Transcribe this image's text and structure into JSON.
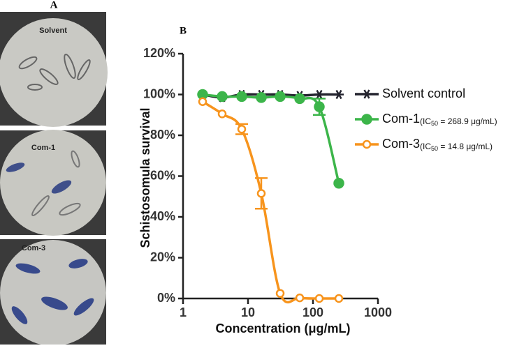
{
  "panel_a": {
    "label": "A",
    "images": [
      {
        "label": "Solvent"
      },
      {
        "label": "Com-1"
      },
      {
        "label": "Com-3"
      }
    ]
  },
  "chart_data": {
    "type": "line",
    "panel_label": "B",
    "x_label": "Concentration (μg/mL)",
    "y_label": "Schistosomula survival",
    "x": [
      2,
      4,
      8,
      16,
      31.25,
      62.5,
      125,
      250
    ],
    "xlim": [
      1,
      1000
    ],
    "xticks": [
      1,
      10,
      100,
      1000
    ],
    "x_log": true,
    "ylim": [
      0,
      120
    ],
    "yticks": [
      {
        "value": 0,
        "label": "0%"
      },
      {
        "value": 20,
        "label": "20%"
      },
      {
        "value": 40,
        "label": "40%"
      },
      {
        "value": 60,
        "label": "60%"
      },
      {
        "value": 80,
        "label": "80%"
      },
      {
        "value": 100,
        "label": "100%"
      },
      {
        "value": 120,
        "label": "120%"
      }
    ],
    "series": [
      {
        "name": "Solvent control",
        "color": "#23232e",
        "marker": "star",
        "values": [
          100,
          98.5,
          100,
          100,
          100,
          99.5,
          100,
          100
        ]
      },
      {
        "name": "Com-1",
        "note_prefix": "(IC",
        "note_sub": "50",
        "note_text": " = 268.9 μg/mL)",
        "color": "#3cb54a",
        "marker": "filled",
        "values": [
          100,
          99,
          99,
          98.5,
          99,
          98,
          94,
          56.5
        ],
        "errors": [
          null,
          null,
          null,
          null,
          null,
          null,
          4,
          null
        ]
      },
      {
        "name": "Com-3",
        "note_prefix": "(IC",
        "note_sub": "50",
        "note_text": " = 14.8 μg/mL)",
        "color": "#f7941d",
        "marker": "open",
        "values": [
          96.5,
          90.5,
          83,
          51.5,
          2.5,
          0.3,
          0,
          0
        ],
        "errors": [
          null,
          null,
          2.5,
          7.5,
          null,
          null,
          null,
          null
        ]
      }
    ]
  }
}
